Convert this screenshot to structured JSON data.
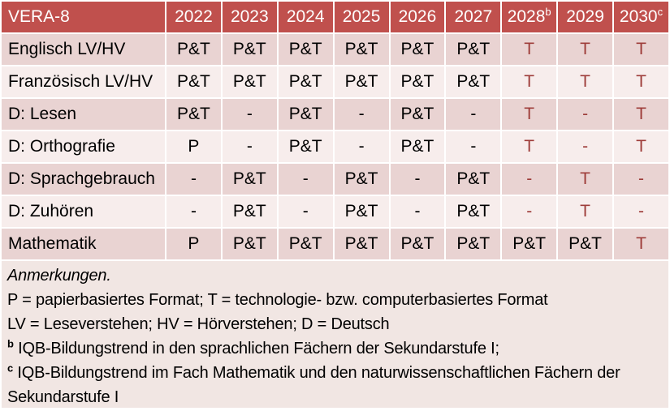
{
  "colors": {
    "header_bg": "#c0504d",
    "header_text": "#ffffff",
    "band_dark": "#e9d3d2",
    "band_light": "#f7edec",
    "notes_bg": "#f1e6e3",
    "accent_text": "#9e3d3a",
    "body_text": "#000000",
    "divider": "#ffffff"
  },
  "table": {
    "title": "VERA-8",
    "header_years": [
      {
        "text": "2022",
        "sup": ""
      },
      {
        "text": "2023",
        "sup": ""
      },
      {
        "text": "2024",
        "sup": ""
      },
      {
        "text": "2025",
        "sup": ""
      },
      {
        "text": "2026",
        "sup": ""
      },
      {
        "text": "2027",
        "sup": ""
      },
      {
        "text": "2028",
        "sup": "b"
      },
      {
        "text": "2029",
        "sup": ""
      },
      {
        "text": "2030",
        "sup": "c"
      }
    ],
    "rows": [
      {
        "label": "Englisch LV/HV",
        "cells": [
          "P&T",
          "P&T",
          "P&T",
          "P&T",
          "P&T",
          "P&T",
          "T",
          "T",
          "T"
        ]
      },
      {
        "label": "Französisch LV/HV",
        "cells": [
          "P&T",
          "P&T",
          "P&T",
          "P&T",
          "P&T",
          "P&T",
          "T",
          "T",
          "T"
        ]
      },
      {
        "label": "D: Lesen",
        "cells": [
          "P&T",
          "-",
          "P&T",
          "-",
          "P&T",
          "-",
          "T",
          "-",
          "T"
        ]
      },
      {
        "label": "D: Orthografie",
        "cells": [
          "P",
          "-",
          "P&T",
          "-",
          "P&T",
          "-",
          "T",
          "-",
          "T"
        ]
      },
      {
        "label": "D: Sprachgebrauch",
        "cells": [
          "-",
          "P&T",
          "-",
          "P&T",
          "-",
          "P&T",
          "-",
          "T",
          "-"
        ]
      },
      {
        "label": "D: Zuhören",
        "cells": [
          "-",
          "P&T",
          "-",
          "P&T",
          "-",
          "P&T",
          "-",
          "T",
          "-"
        ]
      },
      {
        "label": "Mathematik",
        "cells": [
          "P",
          "P&T",
          "P&T",
          "P&T",
          "P&T",
          "P&T",
          "P&T",
          "P&T",
          "T"
        ]
      }
    ]
  },
  "notes": {
    "title": "Anmerkungen.",
    "line_formats": "P = papierbasiertes Format; T = technologie- bzw. computerbasiertes Format",
    "line_abbrev": "LV = Leseverstehen; HV = Hörverstehen; D = Deutsch",
    "footnote_b": {
      "marker": "b",
      "text": "IQB-Bildungstrend in den sprachlichen Fächern der Sekundarstufe I;"
    },
    "footnote_c": {
      "marker": "c",
      "text": "IQB-Bildungstrend im Fach Mathematik und den naturwissenschaftlichen Fächern der Sekundarstufe I"
    }
  }
}
